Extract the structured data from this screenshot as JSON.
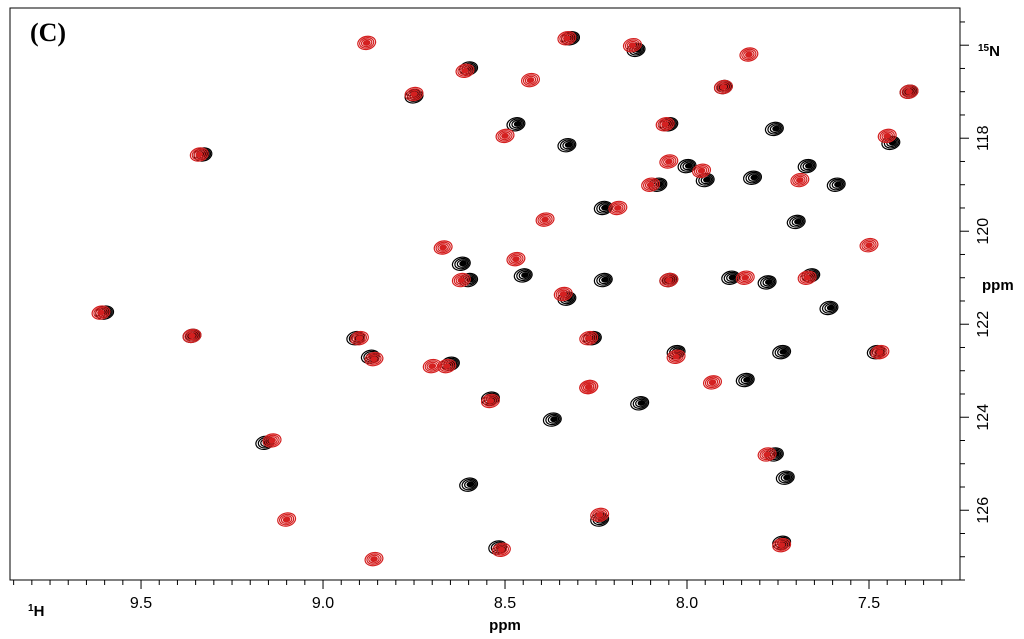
{
  "panel_label": "(C)",
  "chart_data": {
    "type": "scatter",
    "subtype": "2D NMR HSQC contour overlay",
    "xlabel": "ppm",
    "xlabel_nucleus": "1H",
    "ylabel": "ppm",
    "ylabel_nucleus": "15N",
    "x_reversed": true,
    "y_reversed": true,
    "xlim": [
      9.86,
      7.25
    ],
    "ylim": [
      115.2,
      127.5
    ],
    "x_ticks": [
      "9.5",
      "9.0",
      "8.5",
      "8.0",
      "7.5"
    ],
    "y_ticks": [
      "118",
      "120",
      "122",
      "124",
      "126"
    ],
    "grid": false,
    "colors": {
      "black": "#000000",
      "red": "#d42020"
    },
    "series": [
      {
        "color": "black",
        "points": [
          [
            9.6,
            121.75
          ],
          [
            9.36,
            122.25
          ],
          [
            9.33,
            118.35
          ],
          [
            9.16,
            124.55
          ],
          [
            8.91,
            122.3
          ],
          [
            8.87,
            122.7
          ],
          [
            8.75,
            117.1
          ],
          [
            8.65,
            122.85
          ],
          [
            8.62,
            120.7
          ],
          [
            8.6,
            121.05
          ],
          [
            8.6,
            125.45
          ],
          [
            8.6,
            116.5
          ],
          [
            8.54,
            123.6
          ],
          [
            8.52,
            126.8
          ],
          [
            8.47,
            117.7
          ],
          [
            8.45,
            120.95
          ],
          [
            8.37,
            124.05
          ],
          [
            8.32,
            115.85
          ],
          [
            8.33,
            118.15
          ],
          [
            8.33,
            121.45
          ],
          [
            8.24,
            126.2
          ],
          [
            8.23,
            121.05
          ],
          [
            8.23,
            119.5
          ],
          [
            8.26,
            122.3
          ],
          [
            8.14,
            116.1
          ],
          [
            8.13,
            123.7
          ],
          [
            8.08,
            119.0
          ],
          [
            8.05,
            121.05
          ],
          [
            8.05,
            117.7
          ],
          [
            8.03,
            122.6
          ],
          [
            8.0,
            118.6
          ],
          [
            7.95,
            118.9
          ],
          [
            7.9,
            116.9
          ],
          [
            7.88,
            121.0
          ],
          [
            7.84,
            123.2
          ],
          [
            7.78,
            121.1
          ],
          [
            7.76,
            124.8
          ],
          [
            7.74,
            126.7
          ],
          [
            7.76,
            117.8
          ],
          [
            7.74,
            122.6
          ],
          [
            7.7,
            119.8
          ],
          [
            7.67,
            118.6
          ],
          [
            7.66,
            120.95
          ],
          [
            7.73,
            125.3
          ],
          [
            7.61,
            121.65
          ],
          [
            7.48,
            122.6
          ],
          [
            7.44,
            118.1
          ],
          [
            7.39,
            117.0
          ],
          [
            7.59,
            119.0
          ],
          [
            7.82,
            118.85
          ]
        ]
      },
      {
        "color": "red",
        "points": [
          [
            9.61,
            121.75
          ],
          [
            9.34,
            118.35
          ],
          [
            9.36,
            122.25
          ],
          [
            9.14,
            124.5
          ],
          [
            8.88,
            115.95
          ],
          [
            8.9,
            122.3
          ],
          [
            8.86,
            122.75
          ],
          [
            8.75,
            117.05
          ],
          [
            8.66,
            122.9
          ],
          [
            8.67,
            120.35
          ],
          [
            8.62,
            121.05
          ],
          [
            8.61,
            116.55
          ],
          [
            8.54,
            123.65
          ],
          [
            8.5,
            117.95
          ],
          [
            8.51,
            126.85
          ],
          [
            8.47,
            120.6
          ],
          [
            8.39,
            119.75
          ],
          [
            8.33,
            115.85
          ],
          [
            8.34,
            121.35
          ],
          [
            8.27,
            123.35
          ],
          [
            8.27,
            122.3
          ],
          [
            8.24,
            126.1
          ],
          [
            8.19,
            119.5
          ],
          [
            8.15,
            116.0
          ],
          [
            8.1,
            119.0
          ],
          [
            8.05,
            121.05
          ],
          [
            8.06,
            117.7
          ],
          [
            8.03,
            122.7
          ],
          [
            8.05,
            118.5
          ],
          [
            7.96,
            118.7
          ],
          [
            7.9,
            116.9
          ],
          [
            7.93,
            123.25
          ],
          [
            7.84,
            121.0
          ],
          [
            7.83,
            116.2
          ],
          [
            7.78,
            124.8
          ],
          [
            7.74,
            126.75
          ],
          [
            7.69,
            118.9
          ],
          [
            7.67,
            121.0
          ],
          [
            7.47,
            122.6
          ],
          [
            7.45,
            117.95
          ],
          [
            7.39,
            117.0
          ],
          [
            7.5,
            120.3
          ],
          [
            8.27,
            123.35
          ],
          [
            8.43,
            116.75
          ],
          [
            8.86,
            127.05
          ],
          [
            8.7,
            122.9
          ],
          [
            9.1,
            126.2
          ]
        ]
      }
    ]
  }
}
